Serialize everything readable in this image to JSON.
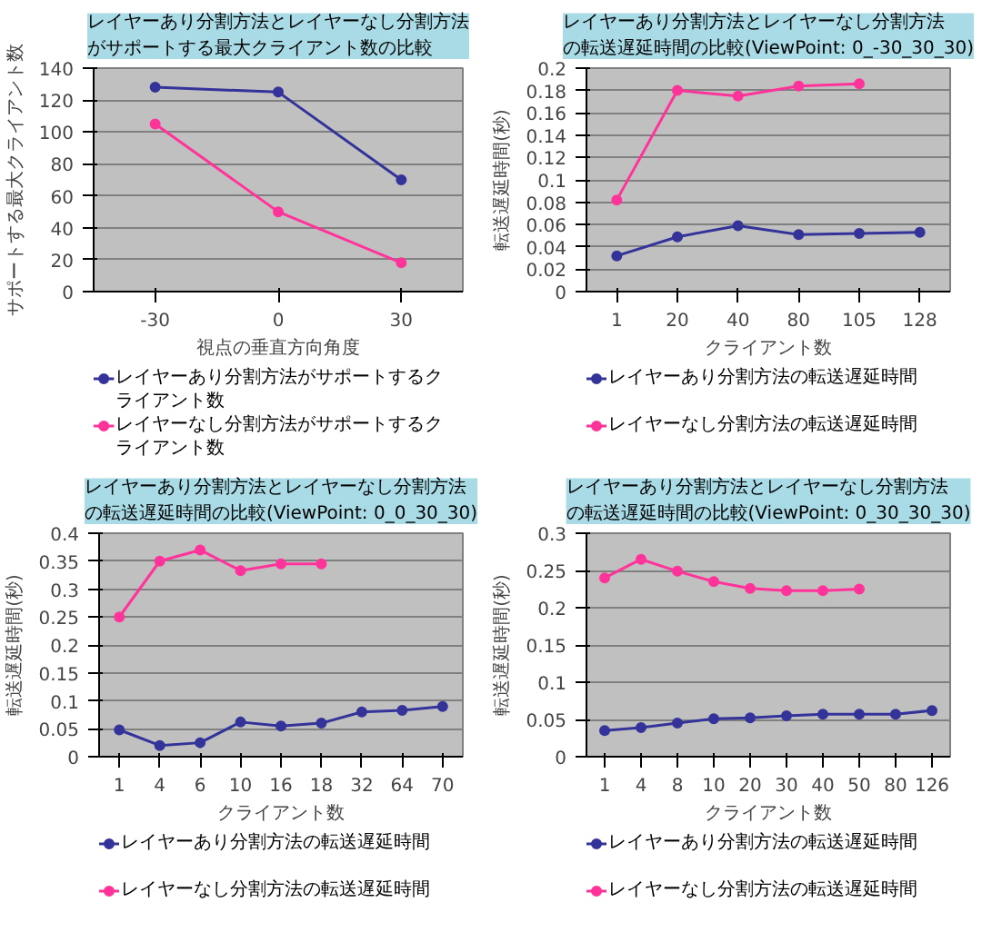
{
  "chart_data": [
    {
      "type": "line",
      "title": "レイヤーあり分割方法とレイヤーなし分割方法がサポートする最大クライアント数の比較",
      "xlabel": "視点の垂直方向角度",
      "ylabel": "サポートする最大クライアント数",
      "categories": [
        "-30",
        "0",
        "30"
      ],
      "ylim": [
        0,
        140
      ],
      "yticks": [
        0,
        20,
        40,
        60,
        80,
        100,
        120,
        140
      ],
      "grid": "y",
      "legend": "bottom",
      "marker": "circle",
      "series": [
        {
          "name": "レイヤーあり分割方法がサポートするクライアント数",
          "color": "#333399",
          "values": [
            128,
            125,
            70
          ]
        },
        {
          "name": "レイヤーなし分割方法がサポートするクライアント数",
          "color": "#ff3399",
          "values": [
            105,
            50,
            18
          ]
        }
      ]
    },
    {
      "type": "line",
      "title": "レイヤーあり分割方法とレイヤーなし分割方法の転送遅延時間の比較(ViewPoint: 0_-30_30_30)",
      "xlabel": "クライアント数",
      "ylabel": "転送遅延時間(秒)",
      "categories": [
        "1",
        "20",
        "40",
        "80",
        "105",
        "128"
      ],
      "ylim": [
        0,
        0.2
      ],
      "yticks": [
        0,
        0.02,
        0.04,
        0.06,
        0.08,
        0.1,
        0.12,
        0.14,
        0.16,
        0.18,
        0.2
      ],
      "grid": "y",
      "legend": "bottom",
      "marker": "circle",
      "series": [
        {
          "name": "レイヤーあり分割方法の転送遅延時間",
          "color": "#333399",
          "values": [
            0.032,
            0.049,
            0.059,
            0.051,
            0.052,
            0.053
          ]
        },
        {
          "name": "レイヤーなし分割方法の転送遅延時間",
          "color": "#ff3399",
          "values": [
            0.082,
            0.18,
            0.175,
            0.184,
            0.186,
            null
          ]
        }
      ]
    },
    {
      "type": "line",
      "title": "レイヤーあり分割方法とレイヤーなし分割方法の転送遅延時間の比較(ViewPoint: 0_0_30_30)",
      "xlabel": "クライアント数",
      "ylabel": "転送遅延時間(秒)",
      "categories": [
        "1",
        "4",
        "6",
        "10",
        "16",
        "18",
        "32",
        "64",
        "70"
      ],
      "ylim": [
        0,
        0.4
      ],
      "yticks": [
        0,
        0.05,
        0.1,
        0.15,
        0.2,
        0.25,
        0.3,
        0.35,
        0.4
      ],
      "grid": "y",
      "legend": "bottom",
      "marker": "circle",
      "series": [
        {
          "name": "レイヤーあり分割方法の転送遅延時間",
          "color": "#333399",
          "values": [
            0.048,
            0.02,
            0.025,
            0.062,
            0.055,
            0.06,
            0.08,
            0.083,
            0.09
          ]
        },
        {
          "name": "レイヤーなし分割方法の転送遅延時間",
          "color": "#ff3399",
          "values": [
            0.25,
            0.35,
            0.37,
            0.333,
            0.345,
            0.345,
            null,
            null,
            null
          ]
        }
      ]
    },
    {
      "type": "line",
      "title": "レイヤーあり分割方法とレイヤーなし分割方法の転送遅延時間の比較(ViewPoint: 0_30_30_30)",
      "xlabel": "クライアント数",
      "ylabel": "転送遅延時間(秒)",
      "categories": [
        "1",
        "4",
        "8",
        "10",
        "20",
        "30",
        "40",
        "50",
        "80",
        "126"
      ],
      "ylim": [
        0,
        0.3
      ],
      "yticks": [
        0,
        0.05,
        0.1,
        0.15,
        0.2,
        0.25,
        0.3
      ],
      "grid": "y",
      "legend": "bottom",
      "marker": "circle",
      "series": [
        {
          "name": "レイヤーあり分割方法の転送遅延時間",
          "color": "#333399",
          "values": [
            0.035,
            0.039,
            0.045,
            0.051,
            0.052,
            0.055,
            0.057,
            0.057,
            0.057,
            0.062
          ]
        },
        {
          "name": "レイヤーなし分割方法の転送遅延時間",
          "color": "#ff3399",
          "values": [
            0.24,
            0.265,
            0.249,
            0.235,
            0.226,
            0.223,
            0.223,
            0.225,
            null,
            null
          ]
        }
      ]
    }
  ]
}
